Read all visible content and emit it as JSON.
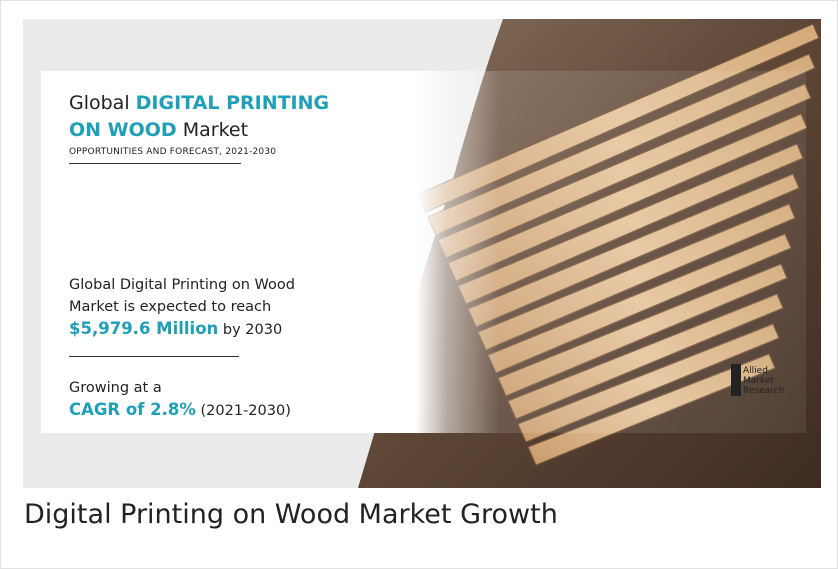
{
  "banner": {
    "title": {
      "prefix": "Global",
      "highlight1": "DIGITAL PRINTING",
      "highlight2": "ON WOOD",
      "suffix": "Market"
    },
    "subtitle": "OPPORTUNITIES AND FORECAST, 2021-2030",
    "forecast": {
      "line1": "Global Digital Printing on Wood",
      "line2": "Market is expected to reach",
      "amount": "$5,979.6 Million",
      "year_text": "by 2030"
    },
    "growth": {
      "line1": "Growing at a",
      "cagr": "CAGR of 2.8%",
      "period": "(2021-2030)"
    },
    "logo": [
      "Allied",
      "Market",
      "Research"
    ]
  },
  "caption": "Digital Printing on Wood Market Growth"
}
